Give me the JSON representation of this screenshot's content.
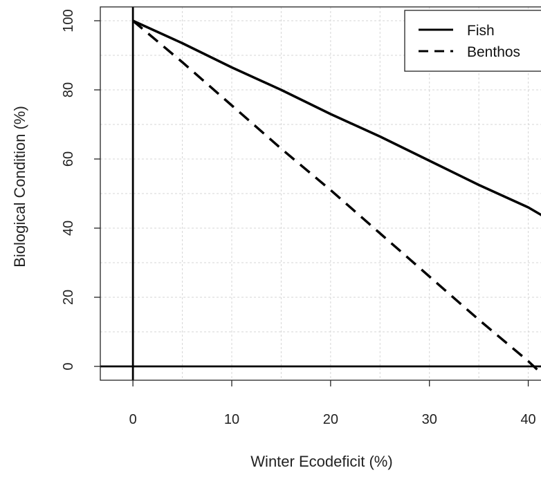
{
  "chart_data": {
    "type": "line",
    "xlabel": "Winter Ecodeficit (%)",
    "ylabel": "Biological Condition (%)",
    "xlim": [
      -3.3,
      41.5
    ],
    "ylim": [
      -4,
      104
    ],
    "x_ticks": [
      0,
      10,
      20,
      30,
      40
    ],
    "y_ticks": [
      0,
      20,
      40,
      60,
      80,
      100
    ],
    "grid": true,
    "reference_lines": {
      "x": 0,
      "y": 0
    },
    "legend": {
      "position": "top-right",
      "entries": [
        "Fish",
        "Benthos"
      ]
    },
    "series": [
      {
        "name": "Fish",
        "line_style": "solid",
        "color": "#000000",
        "x": [
          0,
          5,
          10,
          15,
          20,
          25,
          30,
          35,
          40,
          41.5
        ],
        "y": [
          100,
          93.5,
          86.5,
          80,
          73,
          66.5,
          59.5,
          52.5,
          46,
          43.5
        ]
      },
      {
        "name": "Benthos",
        "line_style": "dashed",
        "color": "#000000",
        "x": [
          0,
          5,
          10,
          15,
          20,
          25,
          30,
          35,
          40,
          41.5
        ],
        "y": [
          100,
          88,
          75.5,
          63,
          51,
          38.5,
          26,
          13.5,
          1.5,
          -2.5
        ]
      }
    ]
  }
}
